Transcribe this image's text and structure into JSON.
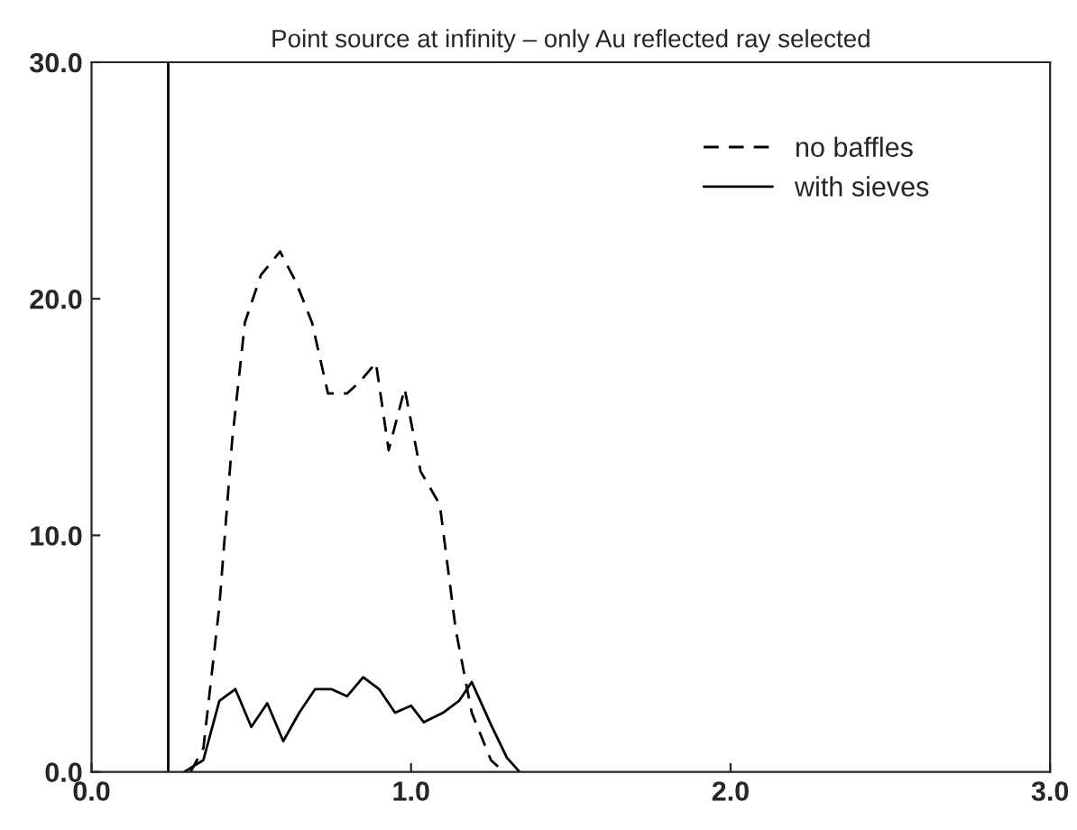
{
  "chart_data": {
    "type": "line",
    "title": "Point source at infinity – only Au reflected ray selected",
    "xlim": [
      0,
      3
    ],
    "ylim": [
      0,
      30
    ],
    "xticks": [
      {
        "value": 0,
        "label": "0.0"
      },
      {
        "value": 1,
        "label": "1.0"
      },
      {
        "value": 2,
        "label": "2.0"
      },
      {
        "value": 3,
        "label": "3.0"
      }
    ],
    "yticks": [
      {
        "value": 0,
        "label": "0.0"
      },
      {
        "value": 10,
        "label": "10.0"
      },
      {
        "value": 20,
        "label": "20.0"
      },
      {
        "value": 30,
        "label": "30.0"
      }
    ],
    "grid": false,
    "legend": "top right",
    "ref_lines": [
      {
        "axis": "x",
        "value": 0.24,
        "color": "#000000",
        "line_style": "solid"
      }
    ],
    "series": [
      {
        "name": "no baffles",
        "color": "#000000",
        "line_style": "dashed",
        "x": [
          0.31,
          0.35,
          0.4,
          0.44,
          0.48,
          0.53,
          0.59,
          0.64,
          0.69,
          0.74,
          0.8,
          0.84,
          0.89,
          0.93,
          0.98,
          1.03,
          1.09,
          1.14,
          1.19,
          1.25,
          1.29
        ],
        "values": [
          0,
          1.0,
          7,
          14,
          19,
          21,
          22,
          20.7,
          19,
          16,
          16,
          16.5,
          17.3,
          13.6,
          16.2,
          12.7,
          11.3,
          6,
          2.5,
          0.5,
          0
        ]
      },
      {
        "name": "with sieves",
        "color": "#000000",
        "line_style": "solid",
        "x": [
          0.29,
          0.35,
          0.4,
          0.45,
          0.5,
          0.55,
          0.6,
          0.65,
          0.7,
          0.75,
          0.8,
          0.85,
          0.9,
          0.95,
          1.0,
          1.04,
          1.1,
          1.15,
          1.19,
          1.25,
          1.3,
          1.34
        ],
        "values": [
          0,
          0.5,
          3,
          3.5,
          1.9,
          2.9,
          1.3,
          2.5,
          3.5,
          3.5,
          3.2,
          4.0,
          3.5,
          2.5,
          2.8,
          2.1,
          2.5,
          3.0,
          3.8,
          2.0,
          0.6,
          0
        ]
      }
    ]
  }
}
